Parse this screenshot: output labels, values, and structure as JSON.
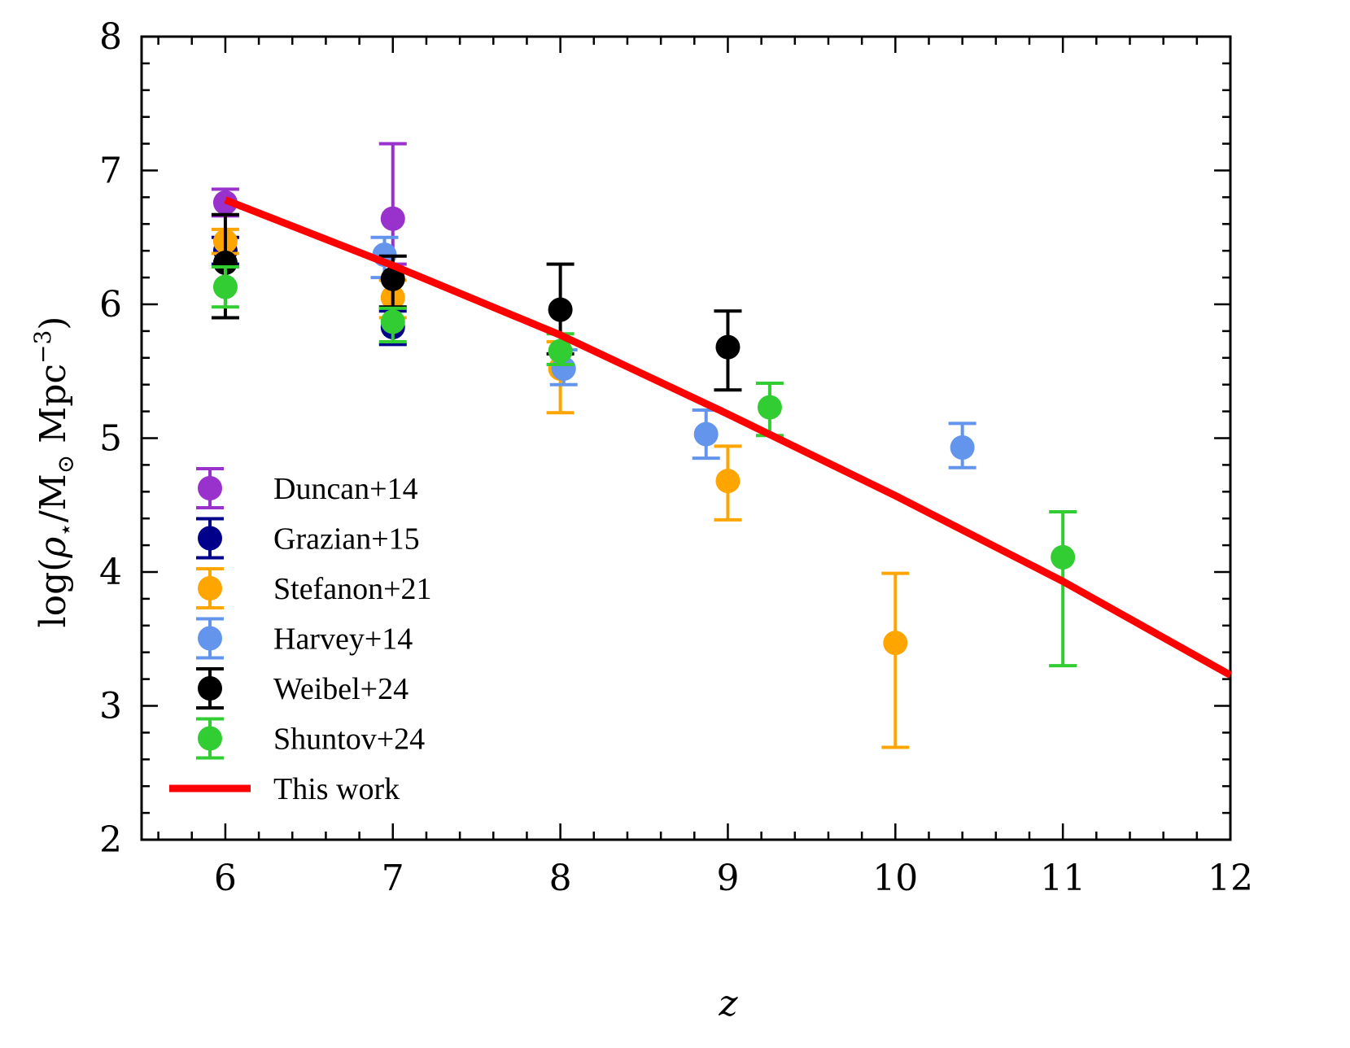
{
  "chart_data": {
    "type": "scatter",
    "title": "",
    "xlabel": "z",
    "ylabel_parts": {
      "prefix": "log(",
      "rho": "ρ",
      "rho_sub": "⋆",
      "slash": "/M",
      "sun_sub": "⊙",
      "mpc": " Mpc",
      "sup": "−3",
      "suffix": ")"
    },
    "xlim": [
      5.5,
      12
    ],
    "ylim": [
      2,
      8
    ],
    "xticks": [
      6,
      7,
      8,
      9,
      10,
      11,
      12
    ],
    "yticks": [
      2,
      3,
      4,
      5,
      6,
      7,
      8
    ],
    "xticks_minor_step": 0.2,
    "yticks_minor_step": 0.2,
    "series": [
      {
        "name": "Duncan+14",
        "color": "#9932CC",
        "points": [
          {
            "x": 6,
            "y": 6.76,
            "lo": 6.66,
            "hi": 6.86
          },
          {
            "x": 7,
            "y": 6.64,
            "lo": 6.3,
            "hi": 7.2
          }
        ]
      },
      {
        "name": "Grazian+15",
        "color": "#00008B",
        "points": [
          {
            "x": 6,
            "y": 6.4,
            "lo": 6.3,
            "hi": 6.5
          },
          {
            "x": 7,
            "y": 5.83,
            "lo": 5.7,
            "hi": 5.95
          }
        ]
      },
      {
        "name": "Stefanon+21",
        "color": "#FFA500",
        "points": [
          {
            "x": 6,
            "y": 6.47,
            "lo": 6.38,
            "hi": 6.56
          },
          {
            "x": 7,
            "y": 6.05,
            "lo": 5.9,
            "hi": 6.18
          },
          {
            "x": 8,
            "y": 5.52,
            "lo": 5.19,
            "hi": 5.72
          },
          {
            "x": 9,
            "y": 4.68,
            "lo": 4.39,
            "hi": 4.94
          },
          {
            "x": 10,
            "y": 3.47,
            "lo": 2.69,
            "hi": 3.99
          }
        ]
      },
      {
        "name": "Harvey+14",
        "color": "#6495ED",
        "points": [
          {
            "x": 6.95,
            "y": 6.37,
            "lo": 6.2,
            "hi": 6.5
          },
          {
            "x": 8.02,
            "y": 5.52,
            "lo": 5.4,
            "hi": 5.66
          },
          {
            "x": 8.87,
            "y": 5.03,
            "lo": 4.85,
            "hi": 5.21
          },
          {
            "x": 10.4,
            "y": 4.93,
            "lo": 4.78,
            "hi": 5.11
          }
        ]
      },
      {
        "name": "Weibel+24",
        "color": "#000000",
        "points": [
          {
            "x": 6,
            "y": 6.31,
            "lo": 5.9,
            "hi": 6.67
          },
          {
            "x": 7,
            "y": 6.19,
            "lo": 5.98,
            "hi": 6.36
          },
          {
            "x": 8,
            "y": 5.96,
            "lo": 5.63,
            "hi": 6.3
          },
          {
            "x": 9,
            "y": 5.68,
            "lo": 5.36,
            "hi": 5.95
          }
        ]
      },
      {
        "name": "Shuntov+24",
        "color": "#32CD32",
        "points": [
          {
            "x": 6,
            "y": 6.13,
            "lo": 5.98,
            "hi": 6.28
          },
          {
            "x": 7,
            "y": 5.87,
            "lo": 5.72,
            "hi": 5.97
          },
          {
            "x": 8,
            "y": 5.65,
            "lo": 5.55,
            "hi": 5.78
          },
          {
            "x": 9.25,
            "y": 5.23,
            "lo": 5.02,
            "hi": 5.41
          },
          {
            "x": 11,
            "y": 4.11,
            "lo": 3.3,
            "hi": 4.45
          }
        ]
      }
    ],
    "line": {
      "name": "This work",
      "color": "#FF0000",
      "x": [
        6,
        7,
        8,
        9,
        10,
        11,
        12
      ],
      "y": [
        6.78,
        6.29,
        5.77,
        5.18,
        4.57,
        3.93,
        3.23
      ]
    },
    "legend_location": "lower-left"
  }
}
